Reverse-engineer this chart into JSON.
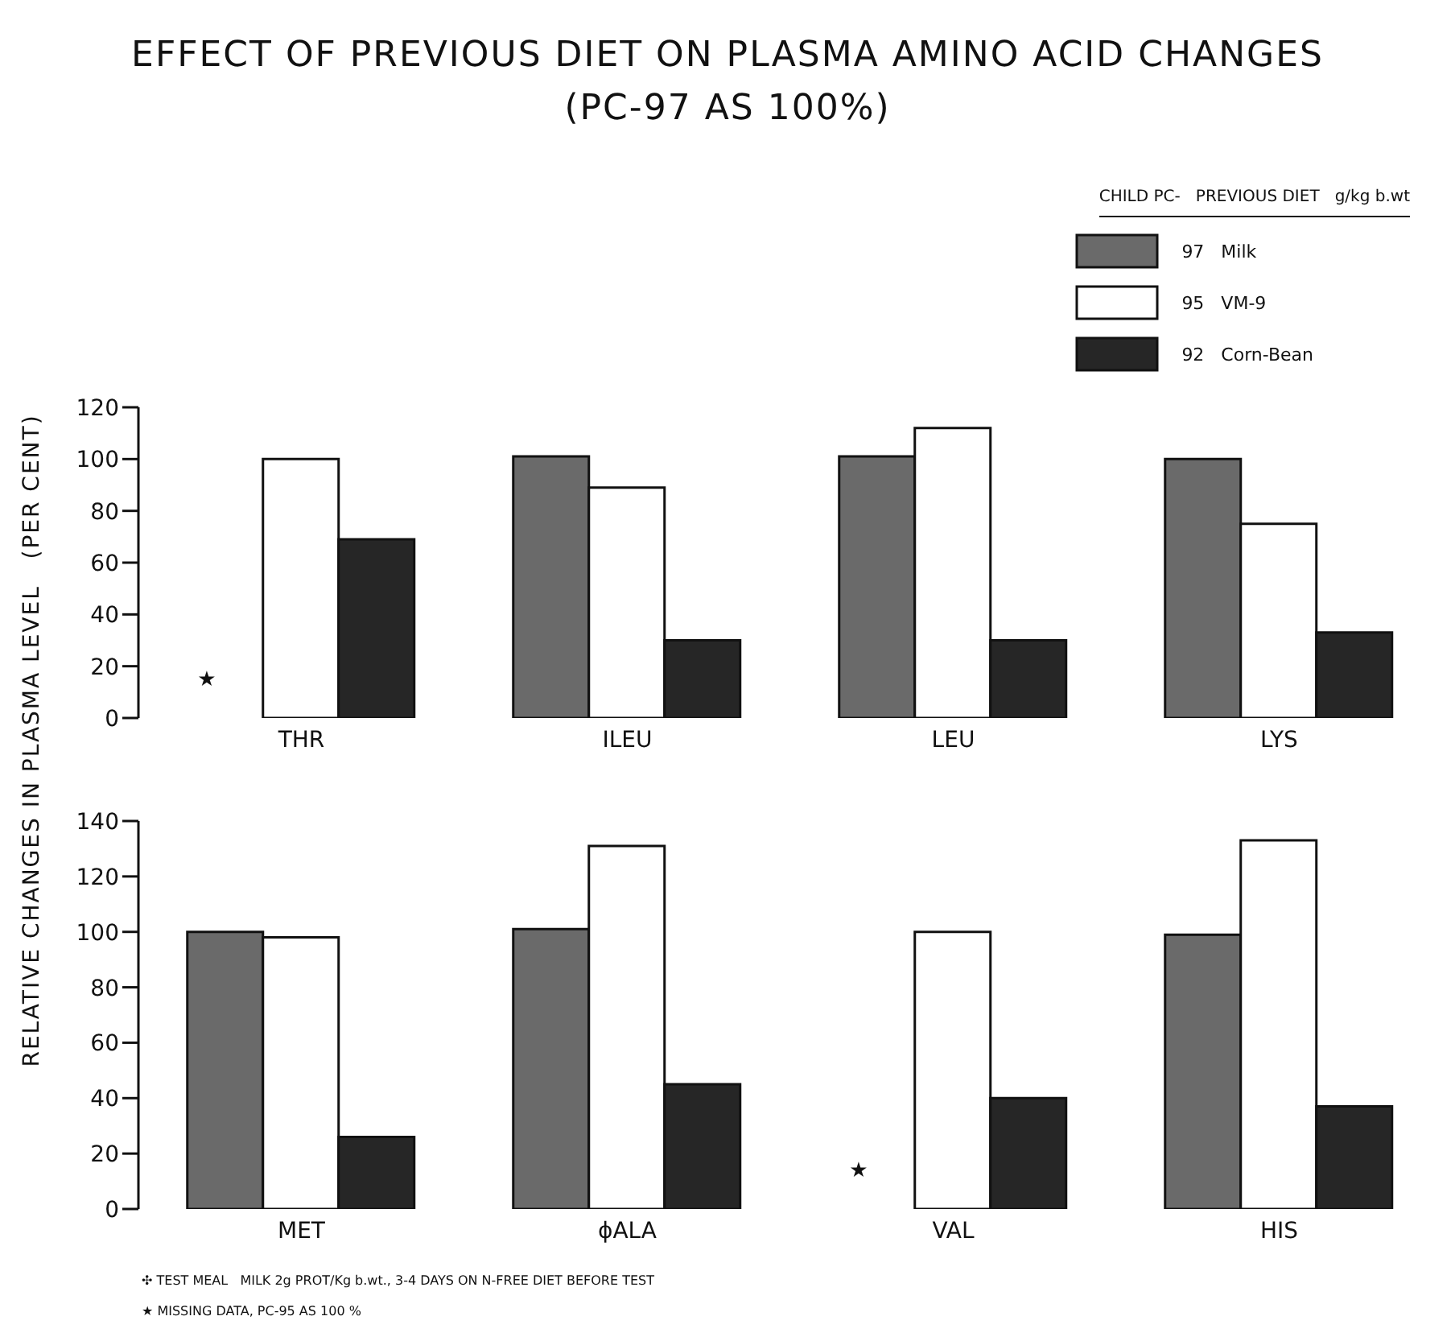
{
  "chart_data": [
    {
      "type": "bar",
      "title": "EFFECT OF PREVIOUS DIET ON PLASMA AMINO ACID CHANGES",
      "subtitle": "(PC-97 AS 100%)",
      "ylabel": "RELATIVE CHANGES IN PLASMA LEVEL   (PER CENT)",
      "legend": "top right",
      "legend_title": "CHILD PC-   PREVIOUS DIET   g/kg b.wt",
      "categories": [
        "THR",
        "ILEU",
        "LEU",
        "LYS"
      ],
      "series": [
        {
          "name": "97   Milk",
          "color": "#6a6a6a",
          "values": [
            null,
            101,
            101,
            100
          ]
        },
        {
          "name": "95   VM-9",
          "color": "#ffffff",
          "values": [
            100,
            89,
            112,
            75
          ]
        },
        {
          "name": "92   Corn-Bean",
          "color": "#262626",
          "values": [
            69,
            30,
            30,
            33
          ]
        }
      ],
      "ylim": [
        0,
        120
      ],
      "yticks": [
        0,
        20,
        40,
        60,
        80,
        100,
        120
      ],
      "grid": false,
      "annotations": [
        "★"
      ]
    },
    {
      "type": "bar",
      "categories": [
        "MET",
        "ϕALA",
        "VAL",
        "HIS"
      ],
      "series": [
        {
          "color": "#6a6a6a",
          "values": [
            100,
            101,
            null,
            99
          ]
        },
        {
          "color": "#ffffff",
          "values": [
            98,
            131,
            100,
            133
          ]
        },
        {
          "color": "#262626",
          "values": [
            26,
            45,
            40,
            37
          ]
        }
      ],
      "ylim": [
        0,
        140
      ],
      "yticks": [
        0,
        20,
        40,
        60,
        80,
        100,
        120,
        140
      ],
      "grid": false,
      "annotations": [
        "★",
        "✣ TEST MEAL   MILK 2g PROT/Kg b.wt., 3-4 DAYS ON N-FREE DIET BEFORE TEST",
        "★ MISSING DATA, PC-95 AS 100 %"
      ]
    }
  ]
}
